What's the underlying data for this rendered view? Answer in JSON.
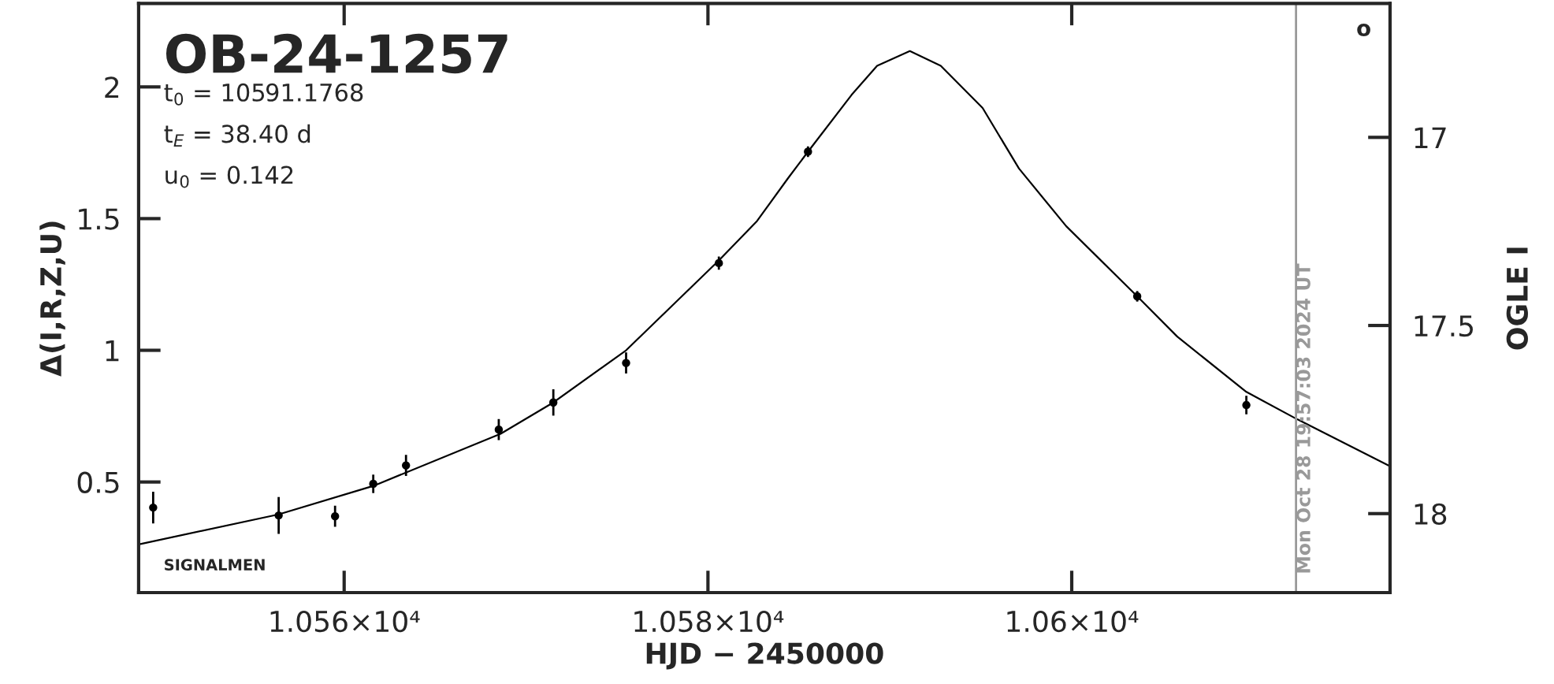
{
  "chart_data": {
    "type": "scatter",
    "title": "OB-24-1257",
    "xlabel": "HJD − 2450000",
    "ylabel": "Δ(I,R,Z,U)",
    "y2label": "OGLE I",
    "annotations": [
      "t$_{0}$ = 10591.1768",
      "t$_{E}$ = 38.40 d",
      "u$_{0}$ = 0.142",
      "SIGNALMEN",
      "o",
      {
        "text": "Mon Oct 28 19:57:03 2024 UT",
        "x": 10612.33,
        "y": 0.15
      }
    ],
    "series": [
      {
        "color": "#000000",
        "marker": "circle",
        "x": [
          10549.5,
          10556.4,
          10559.5,
          10561.6,
          10563.4,
          10568.5,
          10571.5,
          10575.5,
          10580.6,
          10585.5,
          10603.6,
          10609.6
        ],
        "values": [
          0.403,
          0.373,
          0.37,
          0.493,
          0.563,
          0.699,
          0.802,
          0.952,
          1.331,
          1.754,
          1.205,
          0.792
        ],
        "errors": [
          0.06,
          0.07,
          0.04,
          0.035,
          0.04,
          0.04,
          0.05,
          0.04,
          0.025,
          0.02,
          0.02,
          0.035
        ]
      },
      {
        "type": "line",
        "color": "#000000",
        "line_style": "solid",
        "x": [
          10548.7,
          10556.4,
          10561.6,
          10568.6,
          10571.5,
          10575.5,
          10580.6,
          10582.7,
          10584.4,
          10585.5,
          10587.9,
          10589.3,
          10591.1,
          10592.8,
          10595.1,
          10597.1,
          10599.7,
          10603.6,
          10605.8,
          10609.6,
          10612.4,
          10617.4
        ],
        "values": [
          0.263,
          0.377,
          0.485,
          0.683,
          0.802,
          1.0,
          1.341,
          1.491,
          1.653,
          1.754,
          1.97,
          2.08,
          2.136,
          2.08,
          1.92,
          1.69,
          1.471,
          1.205,
          1.052,
          0.842,
          0.738,
          0.563
        ]
      }
    ],
    "ref_lines": [
      {
        "axis": "x",
        "value": 10612.33,
        "color": "#999999"
      }
    ],
    "xlim": [
      10548.7,
      10617.5
    ],
    "xticks": [
      {
        "value": 10560,
        "label": "1.056×10⁴"
      },
      {
        "value": 10580,
        "label": "1.058×10⁴"
      },
      {
        "value": 10600,
        "label": "1.06×10⁴"
      }
    ],
    "ylim": [
      0.08,
      2.317
    ],
    "yticks": [
      0.5,
      1,
      1.5,
      2
    ],
    "y2lim": [
      18.21,
      16.644
    ],
    "y2ticks": [
      17,
      17.5,
      18
    ],
    "legend": false,
    "grid": false
  }
}
